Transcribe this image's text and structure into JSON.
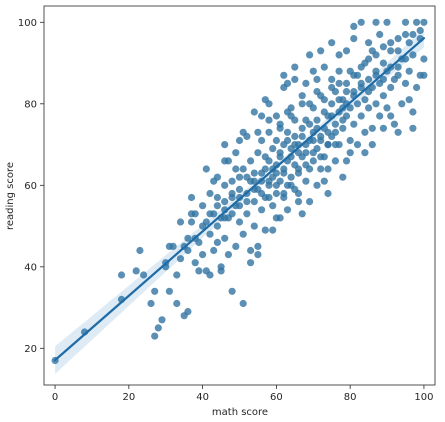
{
  "chart_data": {
    "type": "scatter",
    "xlabel": "math score",
    "ylabel": "reading score",
    "xlim": [
      -3,
      103
    ],
    "ylim": [
      11,
      104
    ],
    "xticks": [
      0,
      20,
      40,
      60,
      80,
      100
    ],
    "yticks": [
      20,
      40,
      60,
      80,
      100
    ],
    "grid": false,
    "colors": {
      "points": "#3274a1",
      "fit_line": "#1f6ba6",
      "ci_band": "#1f77b4"
    },
    "regression": {
      "slope": 0.79,
      "intercept": 17.1
    },
    "points": [
      [
        0,
        17
      ],
      [
        8,
        24
      ],
      [
        18,
        32
      ],
      [
        18,
        38
      ],
      [
        22,
        39
      ],
      [
        23,
        44
      ],
      [
        24,
        38
      ],
      [
        26,
        31
      ],
      [
        27,
        34
      ],
      [
        27,
        23
      ],
      [
        28,
        25
      ],
      [
        29,
        27
      ],
      [
        30,
        40
      ],
      [
        30,
        41
      ],
      [
        31,
        34
      ],
      [
        32,
        45
      ],
      [
        33,
        38
      ],
      [
        34,
        42
      ],
      [
        34,
        51
      ],
      [
        35,
        28
      ],
      [
        36,
        29
      ],
      [
        36,
        47
      ],
      [
        37,
        53
      ],
      [
        37,
        57
      ],
      [
        38,
        41
      ],
      [
        39,
        46
      ],
      [
        40,
        43
      ],
      [
        40,
        55
      ],
      [
        41,
        51
      ],
      [
        41,
        39
      ],
      [
        42,
        48
      ],
      [
        42,
        58
      ],
      [
        43,
        53
      ],
      [
        43,
        44
      ],
      [
        44,
        55
      ],
      [
        44,
        50
      ],
      [
        44,
        62
      ],
      [
        45,
        40
      ],
      [
        45,
        52
      ],
      [
        46,
        56
      ],
      [
        46,
        47
      ],
      [
        46,
        60
      ],
      [
        47,
        43
      ],
      [
        47,
        52
      ],
      [
        48,
        58
      ],
      [
        48,
        34
      ],
      [
        48,
        61
      ],
      [
        49,
        45
      ],
      [
        49,
        55
      ],
      [
        50,
        51
      ],
      [
        50,
        62
      ],
      [
        50,
        57
      ],
      [
        51,
        31
      ],
      [
        51,
        48
      ],
      [
        51,
        64
      ],
      [
        52,
        53
      ],
      [
        52,
        58
      ],
      [
        53,
        44
      ],
      [
        53,
        61
      ],
      [
        53,
        66
      ],
      [
        54,
        56
      ],
      [
        54,
        50
      ],
      [
        54,
        63
      ],
      [
        55,
        59
      ],
      [
        55,
        45
      ],
      [
        55,
        68
      ],
      [
        56,
        54
      ],
      [
        56,
        61
      ],
      [
        56,
        71
      ],
      [
        57,
        57
      ],
      [
        57,
        64
      ],
      [
        57,
        49
      ],
      [
        58,
        60
      ],
      [
        58,
        66
      ],
      [
        58,
        73
      ],
      [
        59,
        55
      ],
      [
        59,
        62
      ],
      [
        59,
        69
      ],
      [
        60,
        58
      ],
      [
        60,
        65
      ],
      [
        60,
        71
      ],
      [
        60,
        52
      ],
      [
        61,
        61
      ],
      [
        61,
        67
      ],
      [
        61,
        75
      ],
      [
        62,
        57
      ],
      [
        62,
        64
      ],
      [
        62,
        70
      ],
      [
        62,
        84
      ],
      [
        63,
        60
      ],
      [
        63,
        66
      ],
      [
        63,
        73
      ],
      [
        63,
        54
      ],
      [
        64,
        62
      ],
      [
        64,
        69
      ],
      [
        64,
        77
      ],
      [
        65,
        59
      ],
      [
        65,
        65
      ],
      [
        65,
        72
      ],
      [
        65,
        86
      ],
      [
        66,
        63
      ],
      [
        66,
        70
      ],
      [
        66,
        58
      ],
      [
        67,
        67
      ],
      [
        67,
        74
      ],
      [
        67,
        80
      ],
      [
        68,
        61
      ],
      [
        68,
        68
      ],
      [
        68,
        76
      ],
      [
        68,
        85
      ],
      [
        69,
        64
      ],
      [
        69,
        71
      ],
      [
        69,
        56
      ],
      [
        70,
        66
      ],
      [
        70,
        73
      ],
      [
        70,
        79
      ],
      [
        70,
        88
      ],
      [
        71,
        60
      ],
      [
        71,
        69
      ],
      [
        71,
        76
      ],
      [
        72,
        64
      ],
      [
        72,
        71
      ],
      [
        72,
        82
      ],
      [
        73,
        67
      ],
      [
        73,
        74
      ],
      [
        73,
        89
      ],
      [
        74,
        70
      ],
      [
        74,
        77
      ],
      [
        74,
        58
      ],
      [
        75,
        72
      ],
      [
        75,
        80
      ],
      [
        75,
        86
      ],
      [
        76,
        66
      ],
      [
        76,
        75
      ],
      [
        76,
        83
      ],
      [
        77,
        70
      ],
      [
        77,
        78
      ],
      [
        77,
        92
      ],
      [
        78,
        74
      ],
      [
        78,
        81
      ],
      [
        78,
        62
      ],
      [
        79,
        77
      ],
      [
        79,
        85
      ],
      [
        79,
        93
      ],
      [
        80,
        71
      ],
      [
        80,
        79
      ],
      [
        80,
        88
      ],
      [
        81,
        75
      ],
      [
        81,
        83
      ],
      [
        81,
        96
      ],
      [
        82,
        70
      ],
      [
        82,
        80
      ],
      [
        82,
        87
      ],
      [
        83,
        77
      ],
      [
        83,
        84
      ],
      [
        83,
        100
      ],
      [
        84,
        73
      ],
      [
        84,
        81
      ],
      [
        84,
        90
      ],
      [
        85,
        79
      ],
      [
        85,
        86
      ],
      [
        86,
        74
      ],
      [
        86,
        84
      ],
      [
        86,
        93
      ],
      [
        87,
        80
      ],
      [
        87,
        88
      ],
      [
        88,
        77
      ],
      [
        88,
        85
      ],
      [
        88,
        97
      ],
      [
        89,
        82
      ],
      [
        89,
        90
      ],
      [
        90,
        79
      ],
      [
        90,
        88
      ],
      [
        90,
        100
      ],
      [
        91,
        84
      ],
      [
        91,
        93
      ],
      [
        92,
        75
      ],
      [
        92,
        86
      ],
      [
        93,
        89
      ],
      [
        93,
        96
      ],
      [
        94,
        80
      ],
      [
        94,
        91
      ],
      [
        95,
        85
      ],
      [
        95,
        100
      ],
      [
        96,
        88
      ],
      [
        96,
        95
      ],
      [
        97,
        78
      ],
      [
        97,
        92
      ],
      [
        98,
        84
      ],
      [
        98,
        100
      ],
      [
        99,
        87
      ],
      [
        99,
        96
      ],
      [
        100,
        91
      ],
      [
        100,
        100
      ],
      [
        100,
        87
      ],
      [
        62,
        87
      ],
      [
        58,
        76
      ],
      [
        52,
        72
      ],
      [
        47,
        66
      ],
      [
        44,
        46
      ],
      [
        38,
        53
      ],
      [
        31,
        45
      ],
      [
        49,
        68
      ],
      [
        56,
        77
      ],
      [
        64,
        79
      ],
      [
        71,
        86
      ],
      [
        77,
        88
      ],
      [
        85,
        95
      ],
      [
        91,
        77
      ],
      [
        66,
        56
      ],
      [
        59,
        49
      ],
      [
        53,
        41
      ],
      [
        45,
        39
      ],
      [
        39,
        39
      ],
      [
        33,
        31
      ],
      [
        42,
        38
      ],
      [
        55,
        43
      ],
      [
        61,
        52
      ],
      [
        67,
        53
      ],
      [
        74,
        64
      ],
      [
        80,
        68
      ],
      [
        86,
        70
      ],
      [
        93,
        73
      ],
      [
        97,
        74
      ],
      [
        60,
        77
      ],
      [
        55,
        73
      ],
      [
        49,
        64
      ],
      [
        43,
        61
      ],
      [
        37,
        51
      ],
      [
        35,
        45
      ],
      [
        41,
        64
      ],
      [
        46,
        70
      ],
      [
        51,
        73
      ],
      [
        57,
        81
      ],
      [
        63,
        85
      ],
      [
        69,
        92
      ],
      [
        75,
        95
      ],
      [
        81,
        99
      ],
      [
        87,
        100
      ],
      [
        72,
        93
      ],
      [
        65,
        89
      ],
      [
        58,
        80
      ],
      [
        54,
        78
      ],
      [
        50,
        71
      ],
      [
        46,
        66
      ],
      [
        73,
        61
      ],
      [
        79,
        66
      ],
      [
        84,
        68
      ],
      [
        89,
        74
      ],
      [
        96,
        81
      ],
      [
        62,
        63
      ],
      [
        64,
        67
      ],
      [
        66,
        64
      ],
      [
        68,
        70
      ],
      [
        70,
        68
      ],
      [
        72,
        72
      ],
      [
        74,
        70
      ],
      [
        76,
        73
      ],
      [
        78,
        76
      ],
      [
        60,
        63
      ],
      [
        58,
        61
      ],
      [
        56,
        58
      ],
      [
        54,
        59
      ],
      [
        52,
        56
      ],
      [
        50,
        55
      ],
      [
        48,
        53
      ],
      [
        46,
        52
      ],
      [
        57,
        67
      ],
      [
        59,
        64
      ],
      [
        61,
        68
      ],
      [
        63,
        71
      ],
      [
        65,
        70
      ],
      [
        67,
        72
      ],
      [
        69,
        75
      ],
      [
        71,
        74
      ],
      [
        73,
        78
      ],
      [
        75,
        77
      ],
      [
        77,
        81
      ],
      [
        79,
        80
      ],
      [
        81,
        82
      ],
      [
        83,
        85
      ],
      [
        85,
        83
      ],
      [
        87,
        87
      ],
      [
        89,
        86
      ],
      [
        91,
        89
      ],
      [
        93,
        87
      ],
      [
        95,
        91
      ],
      [
        66,
        68
      ],
      [
        68,
        65
      ],
      [
        70,
        71
      ],
      [
        72,
        67
      ],
      [
        74,
        73
      ],
      [
        76,
        70
      ],
      [
        78,
        79
      ],
      [
        64,
        60
      ],
      [
        62,
        58
      ],
      [
        60,
        60
      ],
      [
        58,
        57
      ],
      [
        56,
        63
      ],
      [
        54,
        61
      ],
      [
        52,
        62
      ],
      [
        50,
        59
      ],
      [
        48,
        57
      ],
      [
        46,
        54
      ],
      [
        44,
        57
      ],
      [
        42,
        53
      ],
      [
        40,
        50
      ],
      [
        38,
        47
      ],
      [
        36,
        44
      ],
      [
        61,
        74
      ],
      [
        63,
        78
      ],
      [
        65,
        76
      ],
      [
        67,
        82
      ],
      [
        69,
        80
      ],
      [
        71,
        83
      ],
      [
        73,
        81
      ],
      [
        75,
        84
      ],
      [
        77,
        85
      ],
      [
        79,
        83
      ],
      [
        81,
        87
      ],
      [
        83,
        89
      ],
      [
        85,
        91
      ],
      [
        87,
        92
      ],
      [
        89,
        94
      ],
      [
        91,
        95
      ],
      [
        93,
        93
      ],
      [
        95,
        97
      ],
      [
        97,
        97
      ],
      [
        99,
        98
      ]
    ]
  }
}
